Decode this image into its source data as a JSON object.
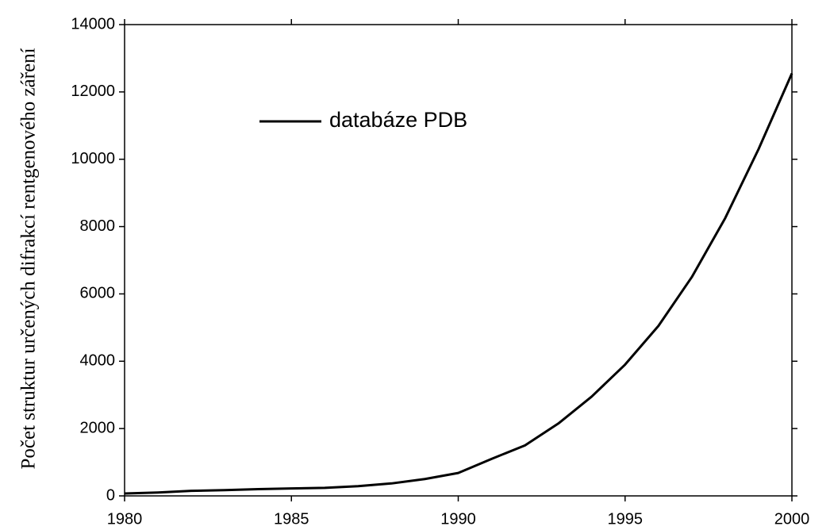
{
  "chart_data": {
    "type": "line",
    "y_label": "Počet struktur určených difrakcí rentgenového záření",
    "x": [
      1980,
      1981,
      1982,
      1983,
      1984,
      1985,
      1986,
      1987,
      1988,
      1989,
      1990,
      1991,
      1992,
      1993,
      1994,
      1995,
      1996,
      1997,
      1998,
      1999,
      2000
    ],
    "series": [
      {
        "name": "databáze PDB",
        "color": "#000000",
        "values": [
          70,
          100,
          150,
          170,
          200,
          220,
          240,
          290,
          370,
          500,
          680,
          1100,
          1500,
          2150,
          2950,
          3900,
          5050,
          6500,
          8250,
          10300,
          12550
        ]
      }
    ],
    "xlim": [
      1980,
      2000
    ],
    "xticks": [
      1980,
      1985,
      1990,
      1995,
      2000
    ],
    "ylim": [
      0,
      14000
    ],
    "yticks": [
      0,
      2000,
      4000,
      6000,
      8000,
      10000,
      12000,
      14000
    ],
    "legend": "upper left",
    "grid": false
  }
}
